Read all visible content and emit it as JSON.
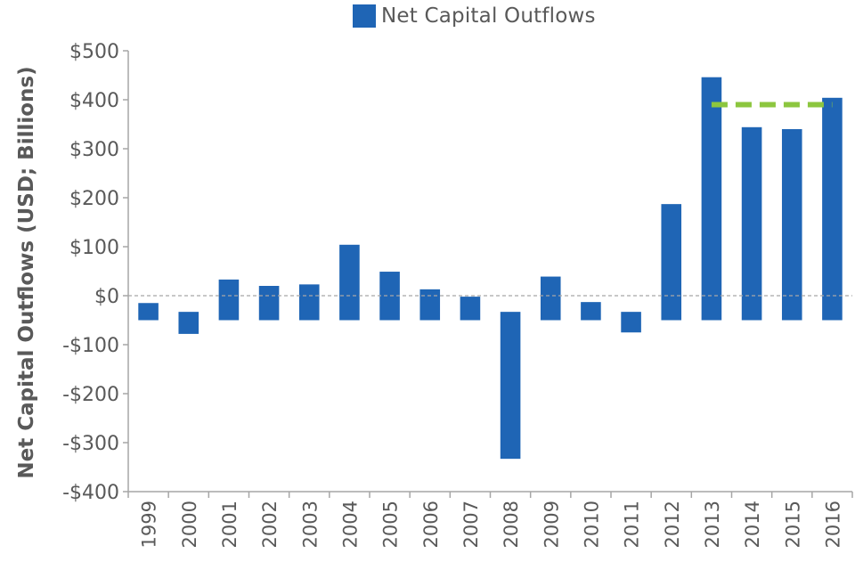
{
  "chart_data": {
    "type": "bar",
    "title": "",
    "legend": {
      "position": "top-center",
      "entries": [
        "Net Capital Outflows"
      ]
    },
    "xlabel": "",
    "ylabel": "Net Capital Outflows (USD; Billions)",
    "ylim": [
      -400,
      500
    ],
    "y_ticks": [
      500,
      400,
      300,
      200,
      100,
      0,
      -100,
      -200,
      -300,
      -400
    ],
    "y_tick_labels": [
      "$500",
      "$400",
      "$300",
      "$200",
      "$100",
      "$0",
      "-$100",
      "-$200",
      "-$300",
      "-$400"
    ],
    "categories": [
      "1999",
      "2000",
      "2001",
      "2002",
      "2003",
      "2004",
      "2005",
      "2006",
      "2007",
      "2008",
      "2009",
      "2010",
      "2011",
      "2012",
      "2013",
      "2014",
      "2015",
      "2016"
    ],
    "series": [
      {
        "name": "Net Capital Outflows",
        "color": "#1f65b5",
        "bars": [
          {
            "top": -15,
            "bottom": -50
          },
          {
            "top": -33,
            "bottom": -78
          },
          {
            "top": 33,
            "bottom": -50
          },
          {
            "top": 20,
            "bottom": -50
          },
          {
            "top": 23,
            "bottom": -50
          },
          {
            "top": 104,
            "bottom": -50
          },
          {
            "top": 49,
            "bottom": -50
          },
          {
            "top": 13,
            "bottom": -50
          },
          {
            "top": -2,
            "bottom": -50
          },
          {
            "top": -33,
            "bottom": -333
          },
          {
            "top": 39,
            "bottom": -50
          },
          {
            "top": -13,
            "bottom": -50
          },
          {
            "top": -33,
            "bottom": -75
          },
          {
            "top": 187,
            "bottom": -50
          },
          {
            "top": 446,
            "bottom": -50
          },
          {
            "top": 344,
            "bottom": -50
          },
          {
            "top": 340,
            "bottom": -50
          },
          {
            "top": 404,
            "bottom": -50
          }
        ]
      }
    ],
    "zero_line": {
      "value": 0,
      "style": "dashed",
      "color": "#a6a6a6"
    },
    "reference_line": {
      "value": 390,
      "from": "2013",
      "to": "2016",
      "style": "dashed",
      "color": "#8cc63f"
    },
    "grid": false
  }
}
